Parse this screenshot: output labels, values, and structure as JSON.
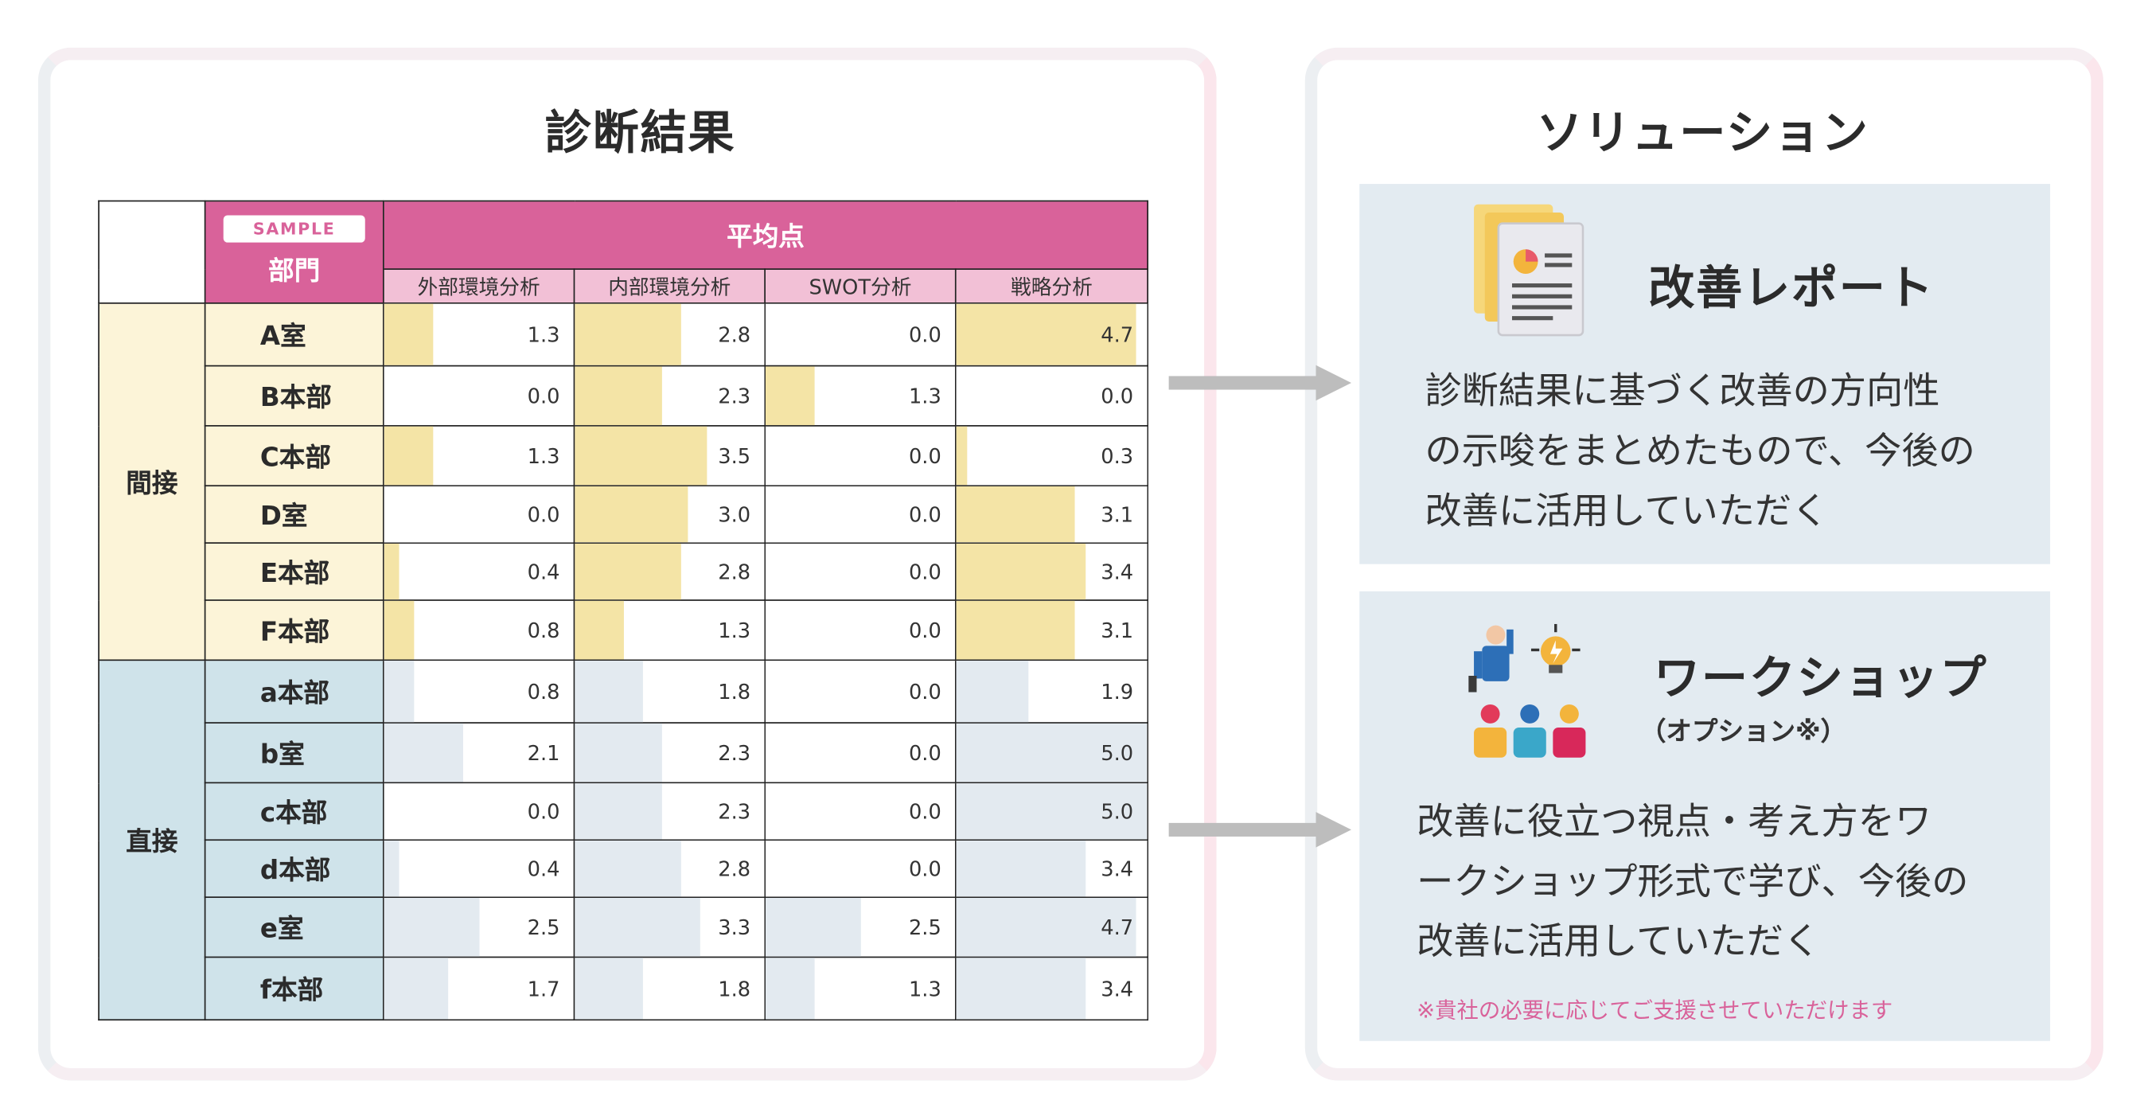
{
  "left_panel": {
    "title": "診断結果",
    "table": {
      "sample_badge": "SAMPLE",
      "dept_header": "部門",
      "avg_header": "平均点",
      "columns": [
        "外部環境分析",
        "内部環境分析",
        "SWOT分析",
        "戦略分析"
      ],
      "groups": [
        {
          "label": "間接",
          "rows": [
            {
              "dept": "A室",
              "values": [
                "1.3",
                "2.8",
                "0.0",
                "4.7"
              ]
            },
            {
              "dept": "B本部",
              "values": [
                "0.0",
                "2.3",
                "1.3",
                "0.0"
              ]
            },
            {
              "dept": "C本部",
              "values": [
                "1.3",
                "3.5",
                "0.0",
                "0.3"
              ]
            },
            {
              "dept": "D室",
              "values": [
                "0.0",
                "3.0",
                "0.0",
                "3.1"
              ]
            },
            {
              "dept": "E本部",
              "values": [
                "0.4",
                "2.8",
                "0.0",
                "3.4"
              ]
            },
            {
              "dept": "F本部",
              "values": [
                "0.8",
                "1.3",
                "0.0",
                "3.1"
              ]
            }
          ]
        },
        {
          "label": "直接",
          "rows": [
            {
              "dept": "a本部",
              "values": [
                "0.8",
                "1.8",
                "0.0",
                "1.9"
              ]
            },
            {
              "dept": "b室",
              "values": [
                "2.1",
                "2.3",
                "0.0",
                "5.0"
              ]
            },
            {
              "dept": "c本部",
              "values": [
                "0.0",
                "2.3",
                "0.0",
                "5.0"
              ]
            },
            {
              "dept": "d本部",
              "values": [
                "0.4",
                "2.8",
                "0.0",
                "3.4"
              ]
            },
            {
              "dept": "e室",
              "values": [
                "2.5",
                "3.3",
                "2.5",
                "4.7"
              ]
            },
            {
              "dept": "f本部",
              "values": [
                "1.7",
                "1.8",
                "1.3",
                "3.4"
              ]
            }
          ]
        }
      ]
    }
  },
  "right_panel": {
    "title": "ソリューション",
    "report": {
      "title": "改善レポート",
      "icon": "report-document-icon",
      "description_lines": [
        "診断結果に基づく改善の方向性",
        "の示唆をまとめたもので、今後の",
        "改善に活用していただく"
      ]
    },
    "workshop": {
      "title": "ワークショップ",
      "option_note": "（オプション※）",
      "icon": "workshop-people-icon",
      "description_lines": [
        "改善に役立つ視点・考え方をワ",
        "ークショップ形式で学び、今後の",
        "改善に活用していただく"
      ],
      "footnote": "※貴社の必要に応じてご支援させていただけます"
    }
  },
  "colors": {
    "accent_pink": "#d9629a",
    "indirect_yellow": "#fcf4d8",
    "indirect_bar": "#f4e4a6",
    "direct_blue": "#cfe3ea",
    "direct_bar": "#e3eaf0",
    "solution_box": "#e3ebf1"
  }
}
